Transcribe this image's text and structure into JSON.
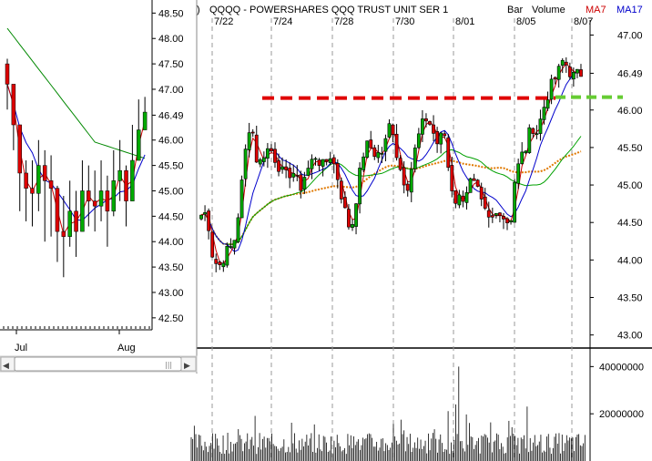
{
  "header": {
    "paren": ")",
    "symbol_title": "QQQQ - POWERSHARES QQQ TRUST UNIT SER 1",
    "bar_label": "Bar",
    "volume_label": "Volume",
    "ma7_label": "MA7",
    "ma17_label": "MA17",
    "ma7_color": "#cc0000",
    "ma17_color": "#0000cc"
  },
  "main_dates": [
    "7/22",
    "7/24",
    "7/28",
    "7/30",
    "8/01",
    "8/05",
    "8/07"
  ],
  "main_price_ticks": [
    "47.00",
    "46.49",
    "46.00",
    "45.50",
    "45.00",
    "44.50",
    "44.00",
    "43.50",
    "43.00"
  ],
  "volume_ticks": [
    "40000000",
    "20000000"
  ],
  "inset": {
    "price_ticks": [
      "48.50",
      "48.00",
      "47.50",
      "47.00",
      "46.49",
      "46.00",
      "45.50",
      "45.00",
      "44.50",
      "44.00",
      "43.50",
      "43.00",
      "42.50"
    ],
    "month_labels": [
      "Jul",
      "Aug"
    ],
    "scroll_left_glyph": "◀",
    "scroll_right_glyph": "▶",
    "scroll_grip_glyph": "|||"
  },
  "chart_data": [
    {
      "type": "bar",
      "chart_type": "intraday-candlestick with moving averages",
      "title": "QQQQ - POWERSHARES QQQ TRUST UNIT SER 1",
      "x_labels": [
        "7/22",
        "7/24",
        "7/28",
        "7/30",
        "8/01",
        "8/05",
        "8/07"
      ],
      "ylim": [
        42.85,
        47.2
      ],
      "grid": "vertical dashed at date separators",
      "series": [
        {
          "name": "MA7",
          "color": "#cc0000"
        },
        {
          "name": "MA17",
          "color": "#0000cc"
        }
      ],
      "overlay_lines": [
        "green moving average",
        "orange dotted moving average"
      ],
      "annotations": [
        {
          "type": "resistance line",
          "value": 46.16,
          "color": "#e00000",
          "style": "dashed"
        },
        {
          "type": "projection",
          "value": 46.16,
          "color": "#66cc33",
          "style": "dashed"
        }
      ],
      "price_path": [
        [
          0,
          44.6
        ],
        [
          0.005,
          44.7
        ],
        [
          0.02,
          44.45
        ],
        [
          0.03,
          44.05
        ],
        [
          0.045,
          43.9
        ],
        [
          0.065,
          44.1
        ],
        [
          0.085,
          44.2
        ],
        [
          0.1,
          44.7
        ],
        [
          0.115,
          45.4
        ],
        [
          0.13,
          45.9
        ],
        [
          0.15,
          45.2
        ],
        [
          0.16,
          45.4
        ],
        [
          0.18,
          45.5
        ],
        [
          0.2,
          45.3
        ],
        [
          0.22,
          45.1
        ],
        [
          0.24,
          45.2
        ],
        [
          0.26,
          44.95
        ],
        [
          0.27,
          45.1
        ],
        [
          0.29,
          45.3
        ],
        [
          0.3,
          45.4
        ],
        [
          0.32,
          45.25
        ],
        [
          0.34,
          45.4
        ],
        [
          0.355,
          45.2
        ],
        [
          0.37,
          44.85
        ],
        [
          0.385,
          44.5
        ],
        [
          0.395,
          44.4
        ],
        [
          0.41,
          44.9
        ],
        [
          0.425,
          45.4
        ],
        [
          0.44,
          45.55
        ],
        [
          0.46,
          45.4
        ],
        [
          0.48,
          45.45
        ],
        [
          0.5,
          45.9
        ],
        [
          0.515,
          45.4
        ],
        [
          0.53,
          45.1
        ],
        [
          0.545,
          45.0
        ],
        [
          0.56,
          45.4
        ],
        [
          0.575,
          45.7
        ],
        [
          0.59,
          45.9
        ],
        [
          0.605,
          45.8
        ],
        [
          0.62,
          45.55
        ],
        [
          0.64,
          45.7
        ],
        [
          0.655,
          45.05
        ],
        [
          0.67,
          44.8
        ],
        [
          0.69,
          44.85
        ],
        [
          0.71,
          45.05
        ],
        [
          0.725,
          44.95
        ],
        [
          0.74,
          44.7
        ],
        [
          0.76,
          44.5
        ],
        [
          0.775,
          44.6
        ],
        [
          0.79,
          44.7
        ],
        [
          0.8,
          44.5
        ],
        [
          0.815,
          44.55
        ],
        [
          0.825,
          45.05
        ],
        [
          0.84,
          45.35
        ],
        [
          0.855,
          45.5
        ],
        [
          0.87,
          45.8
        ],
        [
          0.885,
          45.7
        ],
        [
          0.9,
          46.0
        ],
        [
          0.915,
          46.25
        ],
        [
          0.93,
          46.4
        ],
        [
          0.945,
          46.55
        ],
        [
          0.955,
          46.7
        ],
        [
          0.965,
          46.55
        ],
        [
          0.98,
          46.45
        ],
        [
          1.0,
          46.49
        ]
      ],
      "volume_profile": "baseline 4-12M with spikes up to ~40M near 8/01"
    },
    {
      "type": "bar",
      "chart_type": "daily candlestick (inset)",
      "x_labels": [
        "Jul",
        "Aug"
      ],
      "ylim": [
        42.3,
        48.65
      ],
      "closes": [
        47.1,
        46.3,
        45.35,
        45.05,
        44.95,
        45.5,
        45.2,
        45.05,
        44.2,
        44.1,
        44.6,
        44.2,
        45.0,
        44.8,
        44.7,
        45.0,
        44.6,
        45.2,
        45.4,
        44.8,
        45.6,
        46.2,
        46.55
      ],
      "lows": [
        46.6,
        45.8,
        44.6,
        44.4,
        44.3,
        44.6,
        44.0,
        44.1,
        43.6,
        43.3,
        43.9,
        43.7,
        44.4,
        44.3,
        44.2,
        44.4,
        43.9,
        44.5,
        44.8,
        44.3,
        44.9,
        45.6,
        46.2
      ],
      "highs": [
        47.6,
        46.8,
        45.9,
        45.6,
        45.6,
        46.0,
        45.8,
        45.7,
        45.1,
        44.9,
        45.2,
        45.0,
        45.6,
        45.5,
        45.4,
        45.6,
        45.3,
        45.8,
        46.0,
        45.5,
        46.3,
        46.8,
        46.85
      ],
      "lines": [
        {
          "name": "red",
          "color": "#cc0000"
        },
        {
          "name": "blue",
          "color": "#0000cc"
        },
        {
          "name": "green",
          "color": "#008800"
        }
      ]
    }
  ]
}
